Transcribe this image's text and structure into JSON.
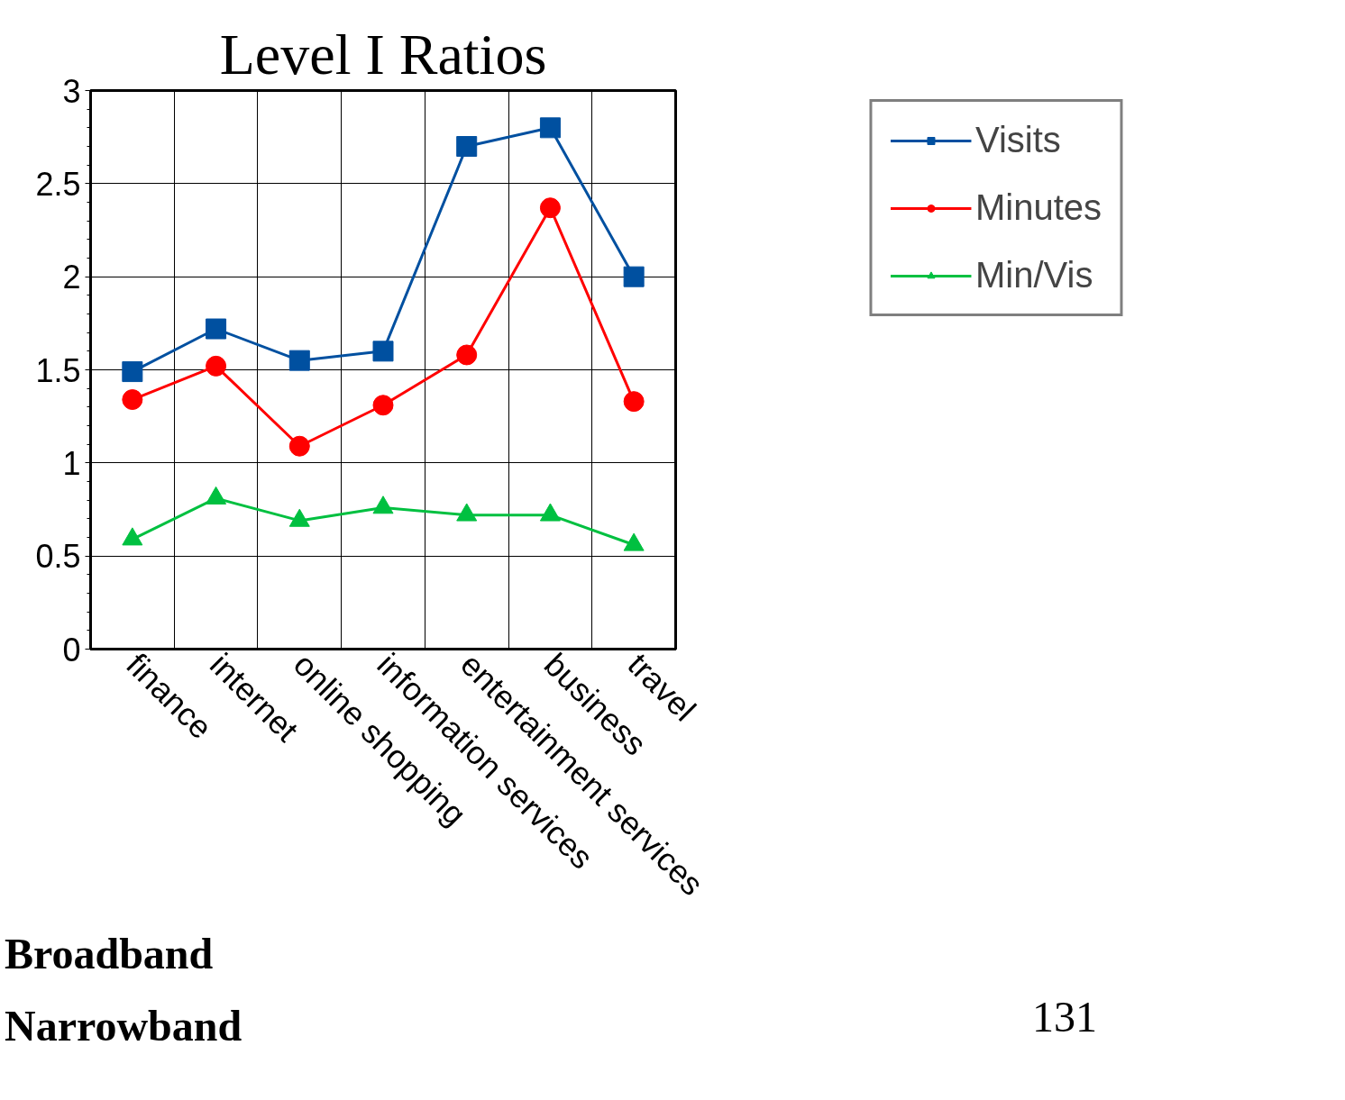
{
  "chart_data": {
    "type": "line",
    "title": "Level I Ratios",
    "categories": [
      "finance",
      "internet",
      "online shopping",
      "information services",
      "entertainment services",
      "business",
      "travel"
    ],
    "series": [
      {
        "name": "Visits",
        "color": "#0050a0",
        "marker": "square",
        "values": [
          1.49,
          1.72,
          1.55,
          1.6,
          2.7,
          2.8,
          2.0
        ]
      },
      {
        "name": "Minutes",
        "color": "#ff0000",
        "marker": "circle",
        "values": [
          1.34,
          1.52,
          1.09,
          1.31,
          1.58,
          2.37,
          1.33
        ]
      },
      {
        "name": "Min/Vis",
        "color": "#00c040",
        "marker": "triangle",
        "values": [
          0.59,
          0.81,
          0.69,
          0.76,
          0.72,
          0.72,
          0.56
        ]
      }
    ],
    "ylim": [
      0,
      3
    ],
    "yticks": [
      0,
      0.5,
      1,
      1.5,
      2,
      2.5,
      3
    ],
    "grid": true,
    "legend": "top right",
    "line_style": "solid",
    "annotations": [
      "Broadband",
      "Narrowband",
      "131"
    ]
  }
}
